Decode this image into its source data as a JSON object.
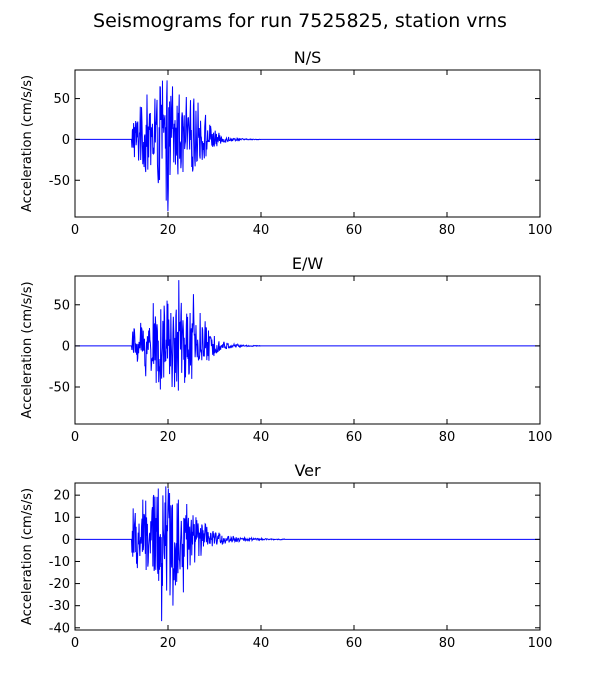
{
  "figure": {
    "title": "Seismograms for run 7525825, station vrns"
  },
  "chart_data": [
    {
      "type": "line",
      "title": "N/S",
      "xlabel": "",
      "ylabel": "Acceleration (cm/s/s)",
      "xlim": [
        0,
        100
      ],
      "ylim": [
        -95,
        85
      ],
      "xticks": [
        0,
        20,
        40,
        60,
        80,
        100
      ],
      "yticks": [
        -50,
        0,
        50
      ],
      "grid": false,
      "color": "#0000ff",
      "onset": 12.2,
      "envelope": [
        [
          12.2,
          30
        ],
        [
          15,
          45
        ],
        [
          18,
          72
        ],
        [
          20,
          75
        ],
        [
          22,
          55
        ],
        [
          25,
          50
        ],
        [
          27,
          38
        ],
        [
          29,
          20
        ],
        [
          31,
          8
        ],
        [
          33,
          3
        ],
        [
          36,
          1
        ],
        [
          40,
          0.3
        ]
      ],
      "series": [
        {
          "x": [
            0,
            12.2,
            12.6,
            14.0,
            15.5,
            17.2,
            18.3,
            18.8,
            19.6,
            20.0,
            21.0,
            22.4,
            23.9,
            25.6,
            26.5,
            28.1,
            29.0,
            31.0,
            33.0,
            36.0,
            40.0,
            100.0
          ],
          "y": [
            0,
            -10,
            20,
            40,
            55,
            50,
            65,
            72,
            -75,
            -88,
            65,
            55,
            52,
            50,
            45,
            30,
            18,
            8,
            3,
            1,
            0,
            0
          ]
        }
      ]
    },
    {
      "type": "line",
      "title": "E/W",
      "xlabel": "",
      "ylabel": "Acceleration (cm/s/s)",
      "xlim": [
        0,
        100
      ],
      "ylim": [
        -95,
        85
      ],
      "xticks": [
        0,
        20,
        40,
        60,
        80,
        100
      ],
      "yticks": [
        -50,
        0,
        50
      ],
      "grid": false,
      "color": "#0000ff",
      "onset": 12.2,
      "envelope": [
        [
          12.2,
          20
        ],
        [
          15,
          40
        ],
        [
          18,
          52
        ],
        [
          20,
          55
        ],
        [
          22,
          70
        ],
        [
          24,
          58
        ],
        [
          26,
          45
        ],
        [
          28,
          28
        ],
        [
          30,
          12
        ],
        [
          32,
          5
        ],
        [
          35,
          2
        ],
        [
          40,
          0.3
        ]
      ],
      "series": [
        {
          "x": [
            0,
            12.2,
            12.8,
            14.1,
            16.8,
            17.5,
            18.4,
            19.8,
            20.9,
            22.3,
            23.6,
            25.5,
            26.9,
            28.0,
            30.0,
            32.0,
            35.0,
            40.0,
            100.0
          ],
          "y": [
            0,
            -5,
            20,
            28,
            52,
            -45,
            -53,
            55,
            -50,
            80,
            -45,
            63,
            40,
            30,
            12,
            5,
            2,
            0,
            0
          ]
        }
      ]
    },
    {
      "type": "line",
      "title": "Ver",
      "xlabel": "",
      "ylabel": "Acceleration (cm/s/s)",
      "xlim": [
        0,
        100
      ],
      "ylim": [
        -41,
        25.5
      ],
      "xticks": [
        0,
        20,
        40,
        60,
        80,
        100
      ],
      "yticks": [
        -40,
        -30,
        -20,
        -10,
        0,
        10,
        20
      ],
      "grid": false,
      "color": "#0000ff",
      "onset": 12.2,
      "envelope": [
        [
          12.2,
          13
        ],
        [
          15,
          18
        ],
        [
          17,
          25
        ],
        [
          19,
          30
        ],
        [
          21,
          26
        ],
        [
          23,
          22
        ],
        [
          25,
          14
        ],
        [
          27,
          9
        ],
        [
          29,
          6
        ],
        [
          31,
          3
        ],
        [
          34,
          1.5
        ],
        [
          38,
          0.6
        ],
        [
          45,
          0.2
        ]
      ],
      "series": [
        {
          "x": [
            0,
            12.2,
            12.5,
            13.4,
            14.6,
            17.9,
            18.6,
            19.5,
            20.3,
            21.1,
            22.2,
            23.3,
            24.0,
            26.0,
            28.0,
            31.0,
            34.0,
            38.0,
            45.0,
            100.0
          ],
          "y": [
            0,
            -6,
            14,
            -13,
            18,
            23,
            -37,
            24,
            21,
            -30,
            18,
            -24,
            16,
            10,
            7,
            3,
            1.5,
            0.6,
            0.2,
            0
          ]
        }
      ]
    }
  ]
}
